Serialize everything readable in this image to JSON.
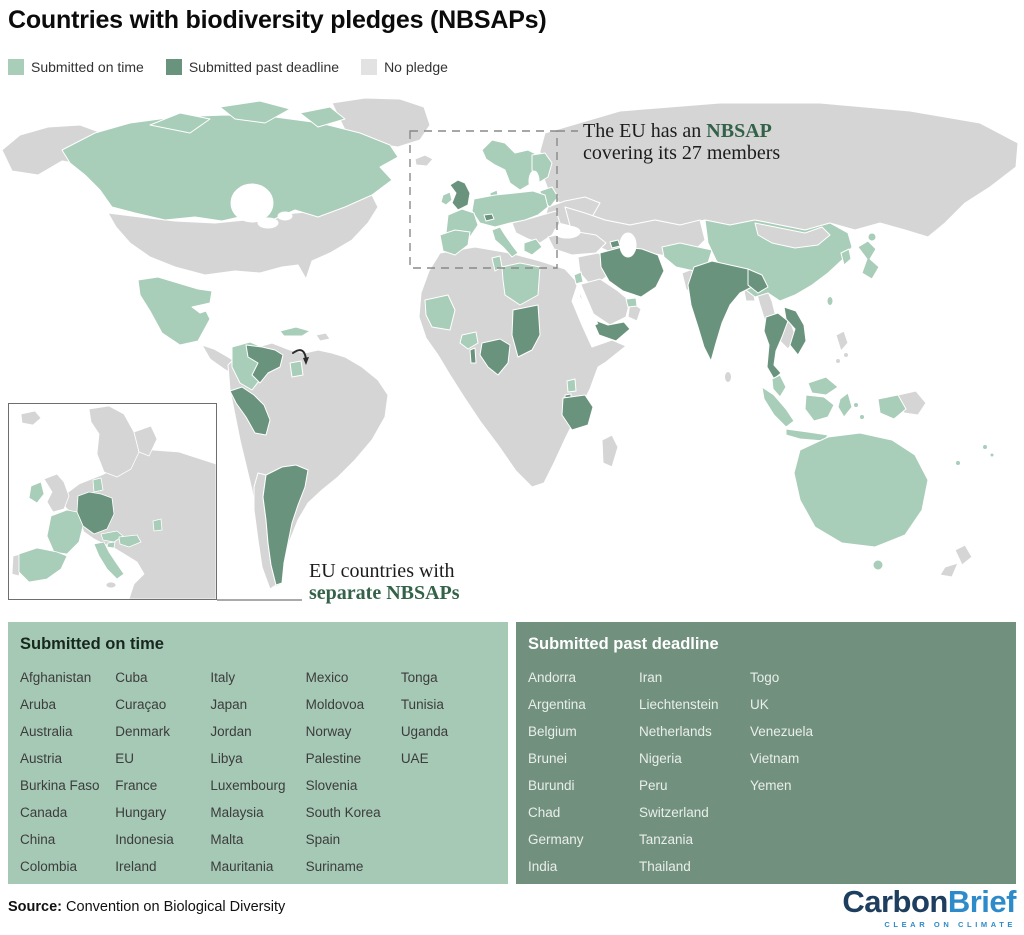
{
  "title": "Countries with biodiversity pledges (NBSAPs)",
  "colors": {
    "on_time": "#a8cdb9",
    "past_deadline": "#6a937e",
    "land": "#d5d5d6",
    "no_pledge_legend": "#e2e2e2",
    "annotation_green": "#336249",
    "box_on_time_bg": "#a5c9b5",
    "box_past_bg": "#71907e",
    "logo_navy": "#1d3e5e",
    "logo_blue": "#2e8bc9"
  },
  "legend": [
    {
      "key": "on_time",
      "label": "Submitted on time"
    },
    {
      "key": "past_deadline",
      "label": "Submitted past deadline"
    },
    {
      "key": "no_pledge_legend",
      "label": "No pledge"
    }
  ],
  "annotations": {
    "eu": {
      "pre": "The EU has an ",
      "highlight": "NBSAP",
      "line2": "covering its 27 members"
    },
    "separate": {
      "line1": "EU countries with",
      "highlight": "separate NBSAPs"
    }
  },
  "map": {
    "main": {
      "canada": "on_time",
      "arctic1": "on_time",
      "arctic2": "on_time",
      "arctic3": "on_time",
      "mexico": "on_time",
      "cuba": "on_time",
      "colombia": "on_time",
      "suriname": "on_time",
      "venezuela": "past_deadline",
      "peru": "past_deadline",
      "argentina": "past_deadline",
      "scandinavia": "on_time",
      "finland": "on_time",
      "denmark": "on_time",
      "baltics": "on_time",
      "ireland": "on_time",
      "iberia": "on_time",
      "france": "on_time",
      "central-europe": "on_time",
      "italy": "on_time",
      "greece": "on_time",
      "uk": "past_deadline",
      "switzerland": "past_deadline",
      "caucasus": "past_deadline",
      "tunisia": "on_time",
      "libya": "on_time",
      "mauritania": "on_time",
      "burkina": "on_time",
      "uganda": "on_time",
      "jordan": "on_time",
      "uae": "on_time",
      "nigeria": "past_deadline",
      "togo": "past_deadline",
      "chad": "past_deadline",
      "burundi": "past_deadline",
      "tanzania": "past_deadline",
      "iran": "past_deadline",
      "yemen": "past_deadline",
      "afghanistan": "on_time",
      "china": "on_time",
      "taiwan": "on_time",
      "india": "past_deadline",
      "india-ne": "past_deadline",
      "thailand": "past_deadline",
      "vietnam": "past_deadline",
      "malaysia-peninsula": "on_time",
      "malaysia-borneo": "on_time",
      "sumatra": "on_time",
      "java": "on_time",
      "kalimantan": "on_time",
      "sulawesi": "on_time",
      "west-papua": "on_time",
      "moluccas1": "on_time",
      "moluccas2": "on_time",
      "japan": "on_time",
      "hokkaido": "on_time",
      "south-korea": "on_time",
      "australia": "on_time",
      "tasmania": "on_time",
      "fiji": "on_time",
      "tonga": "on_time",
      "new-caledonia": "on_time"
    },
    "inset": {
      "ireland": "on_time",
      "denmark": "on_time",
      "france": "on_time",
      "spain": "on_time",
      "austria": "on_time",
      "hungary": "on_time",
      "slovenia": "on_time",
      "italy": "on_time",
      "moldova": "on_time",
      "germany-benelux": "past_deadline"
    }
  },
  "lists": {
    "on_time": {
      "heading": "Submitted on time",
      "columns": [
        [
          "Afghanistan",
          "Aruba",
          "Australia",
          "Austria",
          "Burkina Faso",
          "Canada",
          "China",
          "Colombia"
        ],
        [
          "Cuba",
          "Curaçao",
          "Denmark",
          "EU",
          "France",
          "Hungary",
          "Indonesia",
          "Ireland"
        ],
        [
          "Italy",
          "Japan",
          "Jordan",
          "Libya",
          "Luxembourg",
          "Malaysia",
          "Malta",
          "Mauritania"
        ],
        [
          "Mexico",
          "Moldovoa",
          "Norway",
          "Palestine",
          "Slovenia",
          "South Korea",
          "Spain",
          "Suriname"
        ],
        [
          "Tonga",
          "Tunisia",
          "Uganda",
          "UAE"
        ]
      ]
    },
    "past_deadline": {
      "heading": "Submitted past deadline",
      "columns": [
        [
          "Andorra",
          "Argentina",
          "Belgium",
          "Brunei",
          "Burundi",
          "Chad",
          "Germany",
          "India"
        ],
        [
          "Iran",
          "Liechtenstein",
          "Netherlands",
          "Nigeria",
          "Peru",
          "Switzerland",
          "Tanzania",
          "Thailand"
        ],
        [
          "Togo",
          "UK",
          "Venezuela",
          "Vietnam",
          "Yemen"
        ]
      ]
    }
  },
  "source": {
    "label": "Source:",
    "text": " Convention on Biological Diversity"
  },
  "logo": {
    "part1": "Carbon",
    "part2": "Brief",
    "tagline": "CLEAR ON CLIMATE"
  }
}
